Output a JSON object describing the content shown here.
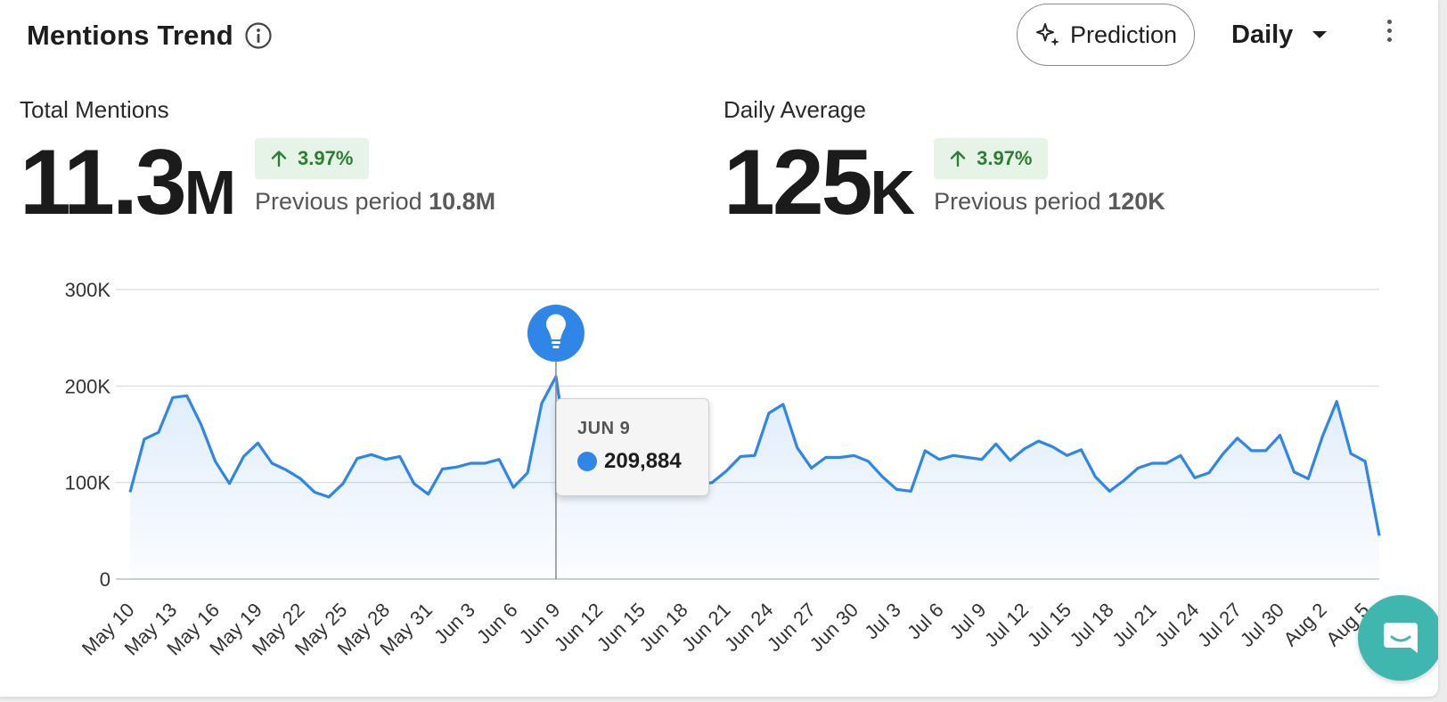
{
  "header": {
    "title": "Mentions Trend",
    "prediction_label": "Prediction",
    "period": "Daily"
  },
  "metrics": {
    "total": {
      "label": "Total Mentions",
      "value": "11.3",
      "unit": "M",
      "change": "3.97%",
      "prev_label": "Previous period",
      "prev_value": "10.8M"
    },
    "average": {
      "label": "Daily Average",
      "value": "125",
      "unit": "K",
      "change": "3.97%",
      "prev_label": "Previous period",
      "prev_value": "120K"
    }
  },
  "tooltip": {
    "date": "JUN 9",
    "value": "209,884"
  },
  "colors": {
    "line": "#2f86e6",
    "positive": "#2e7d32",
    "badge_bg": "#e6f4e8",
    "marker": "#2f86e6",
    "chat": "#3fb7ae"
  },
  "icons": {
    "info": "info-icon",
    "prediction": "sparkle-icon",
    "caret": "caret-down-icon",
    "menu": "kebab-menu-icon",
    "marker": "lightbulb-icon",
    "chat": "chat-icon"
  },
  "chart_data": {
    "type": "area",
    "ylim": [
      0,
      300000
    ],
    "yticks": [
      0,
      100000,
      200000,
      300000
    ],
    "ytick_labels": [
      "0",
      "100K",
      "200K",
      "300K"
    ],
    "xtick_labels": [
      "May 10",
      "May 13",
      "May 16",
      "May 19",
      "May 22",
      "May 25",
      "May 28",
      "May 31",
      "Jun 3",
      "Jun 6",
      "Jun 9",
      "Jun 12",
      "Jun 15",
      "Jun 18",
      "Jun 21",
      "Jun 24",
      "Jun 27",
      "Jun 30",
      "Jul 3",
      "Jul 6",
      "Jul 9",
      "Jul 12",
      "Jul 15",
      "Jul 18",
      "Jul 21",
      "Jul 24",
      "Jul 27",
      "Jul 30",
      "Aug 2",
      "Aug 5"
    ],
    "start_label": "May 10",
    "highlight_date": "Jun 9",
    "grid": true,
    "values": [
      90000,
      145000,
      152000,
      188000,
      190000,
      160000,
      122000,
      99000,
      127000,
      141000,
      120000,
      113000,
      104000,
      90000,
      85000,
      99000,
      125000,
      129000,
      124000,
      127000,
      99000,
      88000,
      114000,
      116000,
      120000,
      120000,
      124000,
      95000,
      110000,
      182000,
      209884,
      108000,
      104000,
      102000,
      100000,
      99000,
      95000,
      99000,
      102000,
      104000,
      98000,
      100000,
      112000,
      127000,
      128000,
      172000,
      181000,
      136000,
      115000,
      126000,
      126000,
      128000,
      122000,
      106000,
      93000,
      91000,
      133000,
      124000,
      128000,
      126000,
      124000,
      140000,
      123000,
      135000,
      143000,
      137000,
      128000,
      134000,
      106000,
      91000,
      102000,
      115000,
      120000,
      120000,
      128000,
      105000,
      110000,
      130000,
      146000,
      133000,
      133000,
      149000,
      111000,
      104000,
      148000,
      184000,
      130000,
      122000,
      45000
    ]
  },
  "chat": {
    "label": ""
  }
}
